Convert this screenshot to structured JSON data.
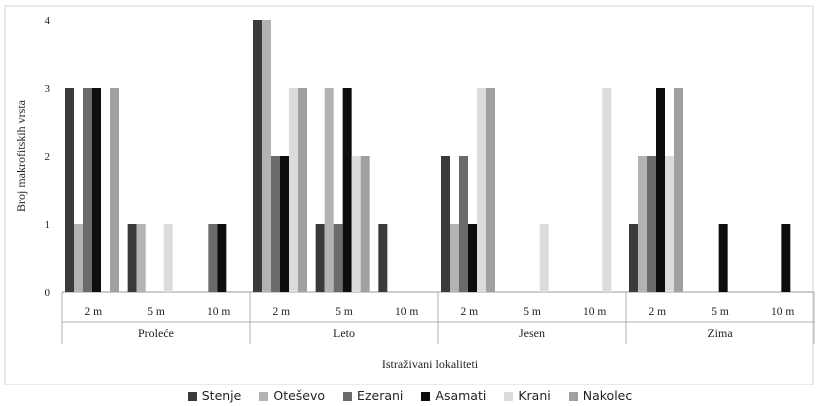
{
  "chart_data": {
    "type": "bar",
    "title": "",
    "xlabel": "Istraživani lokaliteti",
    "ylabel": "Broj makrofitskih vrsta",
    "ylim": [
      0,
      4
    ],
    "yticks": [
      "0",
      "1",
      "2",
      "3",
      "4"
    ],
    "grid": false,
    "legend_position": "bottom",
    "groups": [
      {
        "label": "Proleće",
        "categories": [
          "2 m",
          "5 m",
          "10 m"
        ]
      },
      {
        "label": "Leto",
        "categories": [
          "2 m",
          "5 m",
          "10 m"
        ]
      },
      {
        "label": "Jesen",
        "categories": [
          "2 m",
          "5 m",
          "10 m"
        ]
      },
      {
        "label": "Zima",
        "categories": [
          "2 m",
          "5 m",
          "10 m"
        ]
      }
    ],
    "series": [
      {
        "name": "Stenje",
        "color": "#3a3a3a",
        "values": [
          3,
          1,
          0,
          4,
          1,
          1,
          2,
          0,
          0,
          1,
          0,
          0
        ]
      },
      {
        "name": "Oteševo",
        "color": "#b3b3b3",
        "values": [
          1,
          1,
          0,
          4,
          3,
          0,
          1,
          0,
          0,
          2,
          0,
          0
        ]
      },
      {
        "name": "Ezerani",
        "color": "#6b6b6b",
        "values": [
          3,
          0,
          1,
          2,
          1,
          0,
          2,
          0,
          0,
          2,
          0,
          0
        ]
      },
      {
        "name": "Asamati",
        "color": "#0d0d0d",
        "values": [
          3,
          0,
          1,
          2,
          3,
          0,
          1,
          0,
          0,
          3,
          1,
          1
        ]
      },
      {
        "name": "Krani",
        "color": "#dcdcdc",
        "values": [
          0,
          1,
          0,
          3,
          2,
          0,
          3,
          1,
          3,
          2,
          0,
          0
        ]
      },
      {
        "name": "Nakolec",
        "color": "#a0a0a0",
        "values": [
          3,
          0,
          0,
          3,
          2,
          0,
          3,
          0,
          0,
          3,
          0,
          0
        ]
      }
    ]
  }
}
